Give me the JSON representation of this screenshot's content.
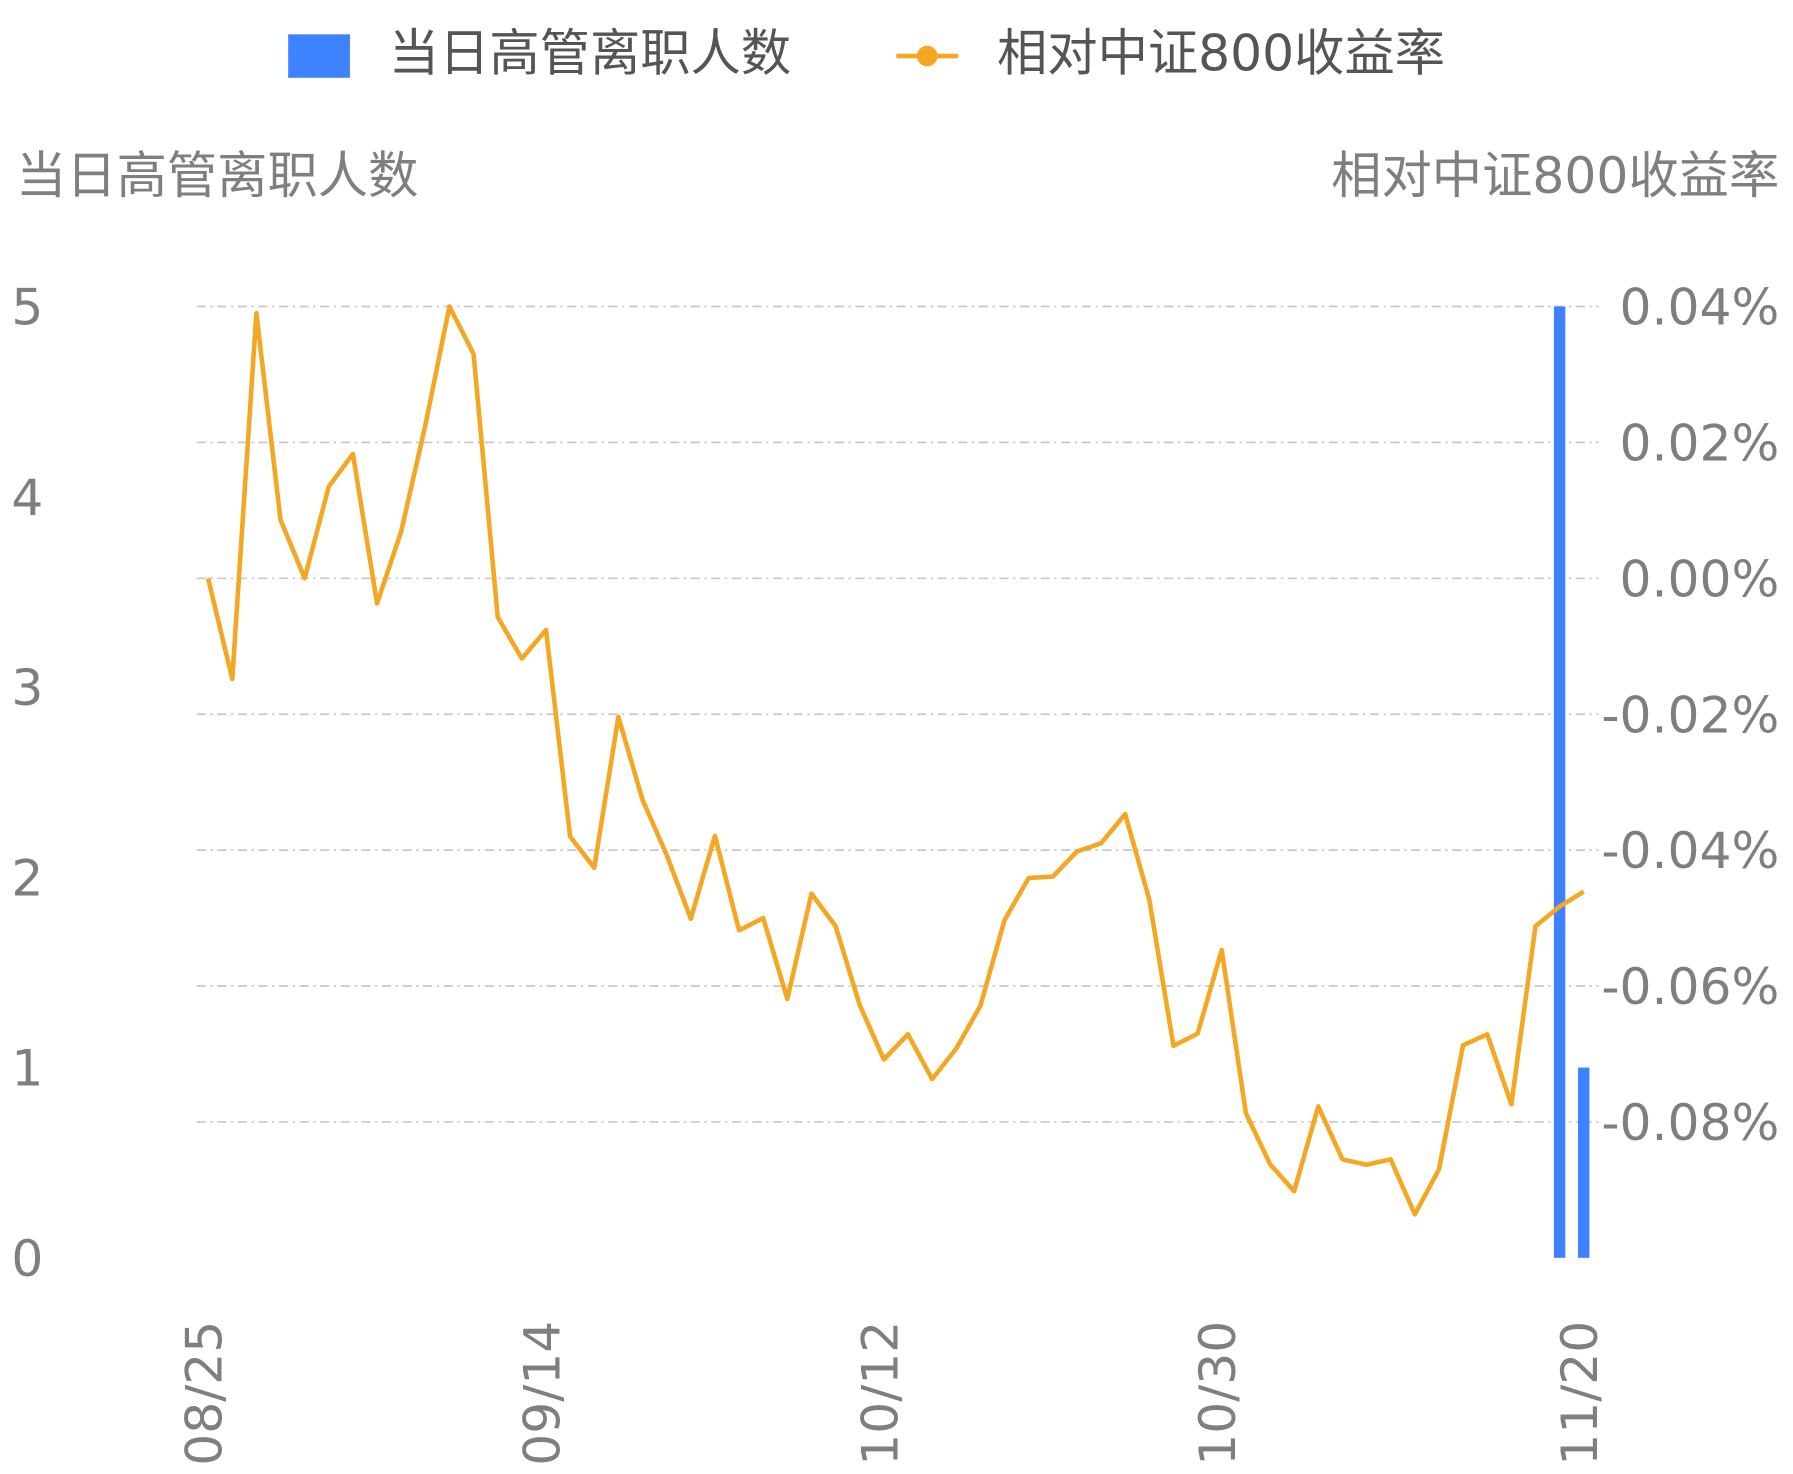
{
  "chart_data": {
    "type": "bar-line",
    "categories": [
      "08/25",
      null,
      null,
      null,
      null,
      null,
      null,
      null,
      null,
      null,
      null,
      null,
      null,
      null,
      "09/14",
      null,
      null,
      null,
      null,
      null,
      null,
      null,
      null,
      null,
      null,
      null,
      null,
      null,
      "10/12",
      null,
      null,
      null,
      null,
      null,
      null,
      null,
      null,
      null,
      null,
      null,
      null,
      null,
      "10/30",
      null,
      null,
      null,
      null,
      null,
      null,
      null,
      null,
      null,
      null,
      null,
      null,
      null,
      null,
      "11/20"
    ],
    "series": [
      {
        "name": "当日高管离职人数",
        "type": "bar",
        "color": "#3e82ff",
        "values": [
          0,
          0,
          0,
          0,
          0,
          0,
          0,
          0,
          0,
          0,
          0,
          0,
          0,
          0,
          0,
          0,
          0,
          0,
          0,
          0,
          0,
          0,
          0,
          0,
          0,
          0,
          0,
          0,
          0,
          0,
          0,
          0,
          0,
          0,
          0,
          0,
          0,
          0,
          0,
          0,
          0,
          0,
          0,
          0,
          0,
          0,
          0,
          0,
          0,
          0,
          0,
          0,
          0,
          0,
          0,
          0,
          5,
          1
        ]
      },
      {
        "name": "相对中证800收益率",
        "type": "line",
        "axis": "y2",
        "color": "#f5a623",
        "values": [
          0.0,
          -0.0148,
          0.039,
          0.0086,
          0.0,
          0.0135,
          0.0183,
          -0.0037,
          0.0069,
          0.0225,
          0.04,
          0.033,
          -0.0057,
          -0.0118,
          -0.0076,
          -0.038,
          -0.0426,
          -0.0204,
          -0.0326,
          -0.0407,
          -0.0501,
          -0.0379,
          -0.0518,
          -0.05,
          -0.0619,
          -0.0464,
          -0.0512,
          -0.0628,
          -0.0708,
          -0.0671,
          -0.0737,
          -0.0692,
          -0.0629,
          -0.0503,
          -0.0441,
          -0.0439,
          -0.0402,
          -0.039,
          -0.0347,
          -0.0473,
          -0.0688,
          -0.067,
          -0.0547,
          -0.0787,
          -0.0862,
          -0.0902,
          -0.0777,
          -0.0855,
          -0.0863,
          -0.0855,
          -0.0936,
          -0.087,
          -0.0687,
          -0.0671,
          -0.0774,
          -0.0512,
          -0.0483,
          -0.0461
        ]
      }
    ],
    "y_label": "当日高管离职人数",
    "y2_label": "相对中证800收益率",
    "ylim": [
      0,
      5
    ],
    "yticks": [
      0,
      1,
      2,
      3,
      4,
      5
    ],
    "y2lim": [
      -0.1,
      0.04
    ],
    "y2ticks": [
      {
        "value": -0.08,
        "label": "-0.08%"
      },
      {
        "value": -0.06,
        "label": "-0.06%"
      },
      {
        "value": -0.04,
        "label": "-0.04%"
      },
      {
        "value": -0.02,
        "label": "-0.02%"
      },
      {
        "value": 0,
        "label": "0.00%"
      },
      {
        "value": 0.02,
        "label": "0.02%"
      },
      {
        "value": 0.04,
        "label": "0.04%"
      }
    ],
    "grid": true,
    "legend": "top"
  }
}
